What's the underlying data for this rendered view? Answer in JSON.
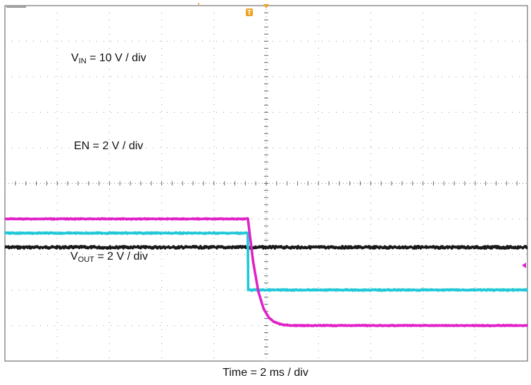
{
  "chart_data": {
    "type": "line",
    "title": "",
    "xlabel": "Time = 2 ms / div",
    "ylabel": "",
    "grid": true,
    "divisions": {
      "horizontal": 10,
      "vertical": 10
    },
    "x_unit": "ms",
    "x_per_div": 2,
    "xlim": [
      0,
      20
    ],
    "trigger_time_ms": 9.3,
    "annotations": [
      {
        "text_main": "V",
        "text_sub": "IN",
        "text_rest": " = 10 V / div"
      },
      {
        "text_main": "EN = 2 V / div",
        "text_sub": "",
        "text_rest": ""
      },
      {
        "text_main": "V",
        "text_sub": "OUT",
        "text_rest": " = 2 V / div"
      }
    ],
    "series": [
      {
        "color": "#1a1a1a",
        "volts_per_div": 10,
        "ground_div": 0.2,
        "points": [
          [
            0,
            30
          ],
          [
            20,
            30
          ]
        ]
      },
      {
        "color": "#22c8d8",
        "volts_per_div": 2,
        "ground_div": 1.2,
        "points": [
          [
            0,
            4.8
          ],
          [
            9.3,
            4.8
          ],
          [
            9.31,
            1.6
          ],
          [
            20,
            1.6
          ]
        ]
      },
      {
        "color": "#e020c8",
        "volts_per_div": 2,
        "ground_div": 0.5,
        "points": [
          [
            0,
            7.0
          ],
          [
            9.3,
            7.0
          ],
          [
            9.5,
            4.6
          ],
          [
            9.7,
            2.9
          ],
          [
            9.9,
            1.95
          ],
          [
            10.1,
            1.45
          ],
          [
            10.3,
            1.2
          ],
          [
            10.6,
            1.05
          ],
          [
            11.0,
            1.0
          ],
          [
            20,
            1.0
          ]
        ]
      }
    ]
  },
  "markers": {
    "trigger_letter": "T",
    "trigger_color": "#f0a020",
    "ref_color": "#e020c8"
  }
}
